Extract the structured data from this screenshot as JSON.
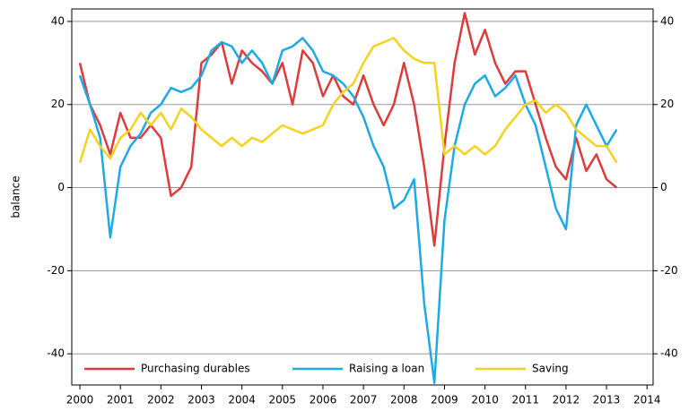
{
  "chart_data": {
    "type": "line",
    "y_label": "balance",
    "x": [
      2000,
      2000.25,
      2000.5,
      2000.75,
      2001,
      2001.25,
      2001.5,
      2001.75,
      2002,
      2002.25,
      2002.5,
      2002.75,
      2003,
      2003.25,
      2003.5,
      2003.75,
      2004,
      2004.25,
      2004.5,
      2004.75,
      2005,
      2005.25,
      2005.5,
      2005.75,
      2006,
      2006.25,
      2006.5,
      2006.75,
      2007,
      2007.25,
      2007.5,
      2007.75,
      2008,
      2008.25,
      2008.5,
      2008.75,
      2009,
      2009.25,
      2009.5,
      2009.75,
      2010,
      2010.25,
      2010.5,
      2010.75,
      2011,
      2011.25,
      2011.5,
      2011.75,
      2012,
      2012.25,
      2012.5,
      2012.75,
      2013,
      2013.25
    ],
    "series": [
      {
        "name": "Purchasing durables",
        "color": "#dc3c3c",
        "values": [
          30,
          20,
          15,
          8,
          18,
          12,
          12,
          15,
          12,
          -2,
          0,
          5,
          30,
          32,
          35,
          25,
          33,
          30,
          28,
          25,
          30,
          20,
          33,
          30,
          22,
          27,
          22,
          20,
          27,
          20,
          15,
          20,
          30,
          20,
          5,
          -14,
          10,
          30,
          42,
          32,
          38,
          30,
          25,
          28,
          28,
          20,
          12,
          5,
          2,
          12,
          4,
          8,
          2,
          0
        ]
      },
      {
        "name": "Raising a loan",
        "color": "#1eaae6",
        "values": [
          27,
          20,
          12,
          -12,
          5,
          10,
          13,
          18,
          20,
          24,
          23,
          24,
          27,
          33,
          35,
          34,
          30,
          33,
          30,
          25,
          33,
          34,
          36,
          33,
          28,
          27,
          25,
          22,
          17,
          10,
          5,
          -5,
          -3,
          2,
          -28,
          -47,
          -8,
          10,
          20,
          25,
          27,
          22,
          24,
          27,
          20,
          15,
          5,
          -5,
          -10,
          15,
          20,
          15,
          10,
          14
        ]
      },
      {
        "name": "Saving",
        "color": "#f5d21e",
        "values": [
          6,
          14,
          10,
          7,
          12,
          14,
          18,
          15,
          18,
          14,
          19,
          17,
          14,
          12,
          10,
          12,
          10,
          12,
          11,
          13,
          15,
          14,
          13,
          14,
          15,
          20,
          23,
          25,
          30,
          34,
          35,
          36,
          33,
          31,
          30,
          30,
          8,
          10,
          8,
          10,
          8,
          10,
          14,
          17,
          20,
          21,
          18,
          20,
          18,
          14,
          12,
          10,
          10,
          6
        ]
      }
    ],
    "xlim": [
      1999.8,
      2014.15
    ],
    "xticks": [
      2000,
      2001,
      2002,
      2003,
      2004,
      2005,
      2006,
      2007,
      2008,
      2009,
      2010,
      2011,
      2012,
      2013,
      2014
    ],
    "ylim": [
      -47.5,
      43
    ],
    "yticks": [
      -40,
      -20,
      0,
      20,
      40
    ],
    "grid": true,
    "legend": "lower left"
  }
}
